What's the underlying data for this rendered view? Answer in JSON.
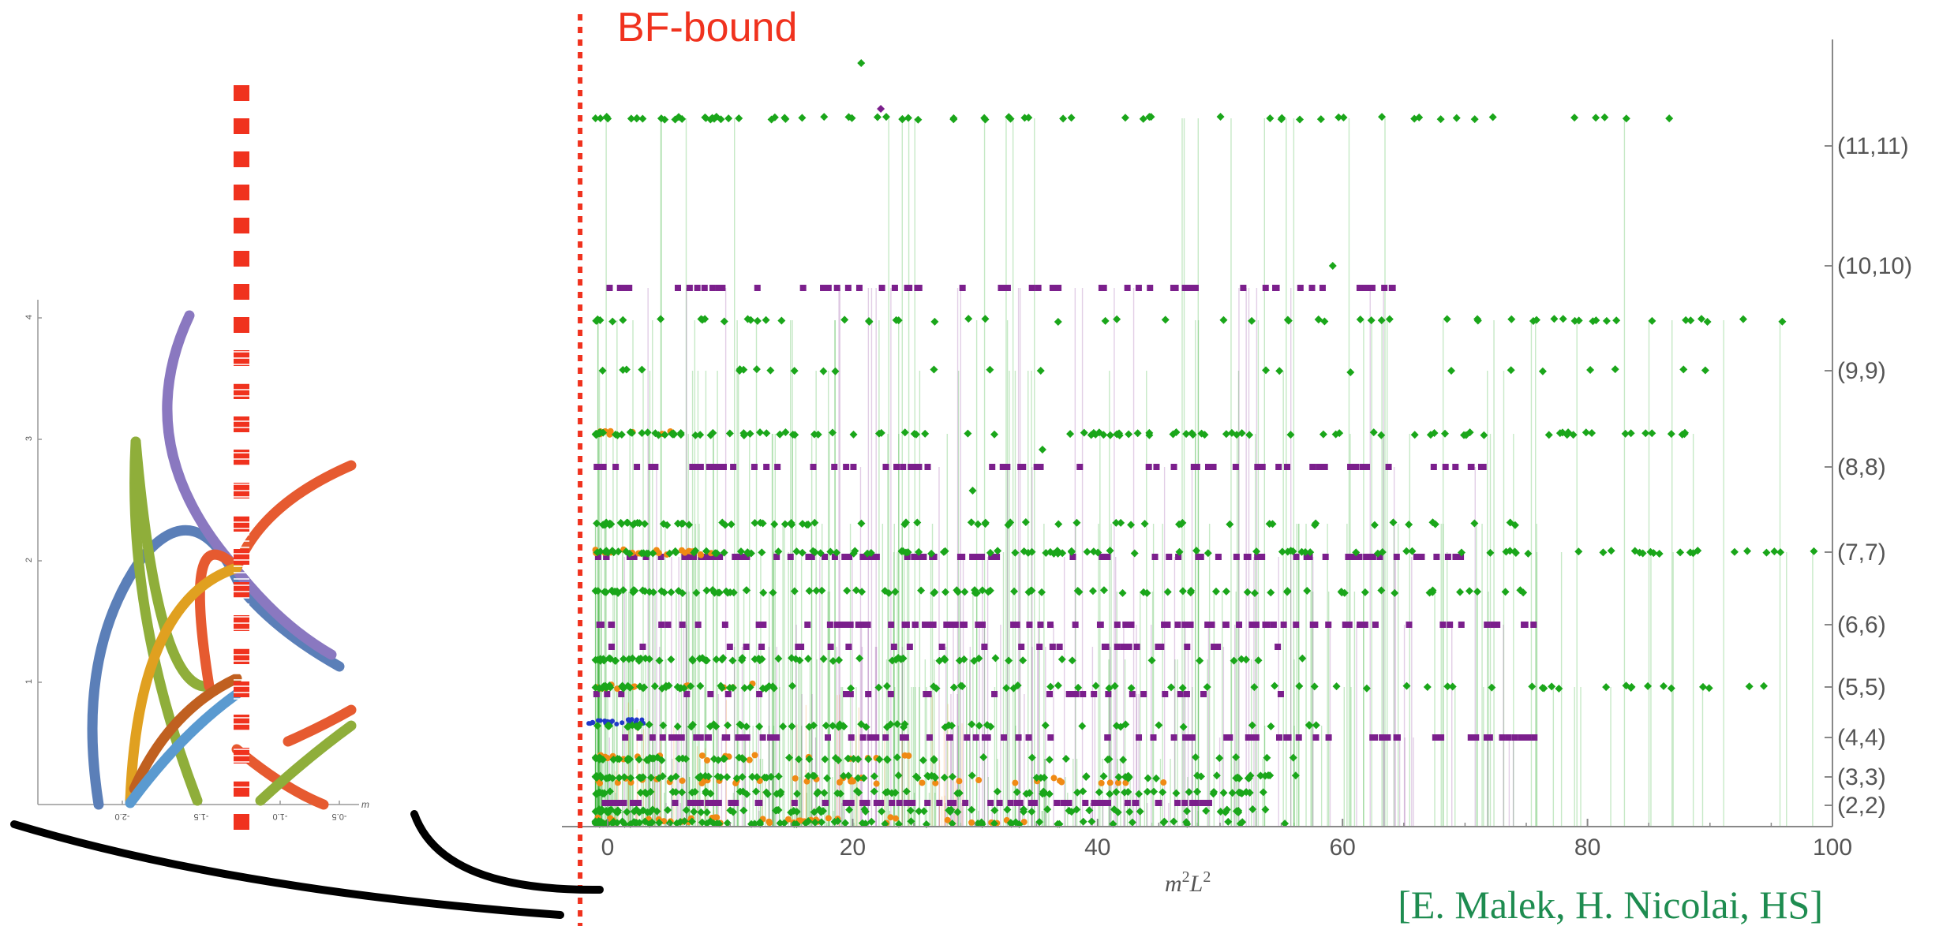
{
  "chart_data": [
    {
      "type": "scatter",
      "title": "",
      "annotation": "BF-bound",
      "credit": "[E. Malek, H. Nicolai, HS]",
      "xlabel_base": "m",
      "xlabel_sup1": "2",
      "xlabel_base2": "L",
      "xlabel_sup2": "2",
      "xlim": [
        -2.25,
        100
      ],
      "x_ticks": [
        "0",
        "20",
        "40",
        "60",
        "80",
        "100"
      ],
      "y_ticks": [
        "(2,2)",
        "(3,3)",
        "(4,4)",
        "(5,5)",
        "(6,6)",
        "(7,7)",
        "(8,8)",
        "(9,9)",
        "(10,10)",
        "(11,11)"
      ],
      "bf_bound_x": -2.25,
      "grid": false,
      "colors": {
        "green": "#1aa61a",
        "purple": "#7b1f8c",
        "orange": "#f08a14",
        "blue": "#2038c8",
        "bf": "#f0321e",
        "credit": "#1e8c50",
        "axis": "#888888"
      },
      "note": ""
    },
    {
      "type": "line",
      "title": "",
      "inset_axis_label": "m",
      "x_ticks": [
        "-2.0",
        "-1.5",
        "-1.0",
        "-0.5"
      ],
      "y_ticks": [
        "4",
        "3",
        "2",
        "1"
      ],
      "series_colors": [
        "#5b7fb8",
        "#8fae3a",
        "#8a78c0",
        "#e65a30",
        "#e0a020",
        "#c06020",
        "#5a9ad0"
      ]
    }
  ]
}
